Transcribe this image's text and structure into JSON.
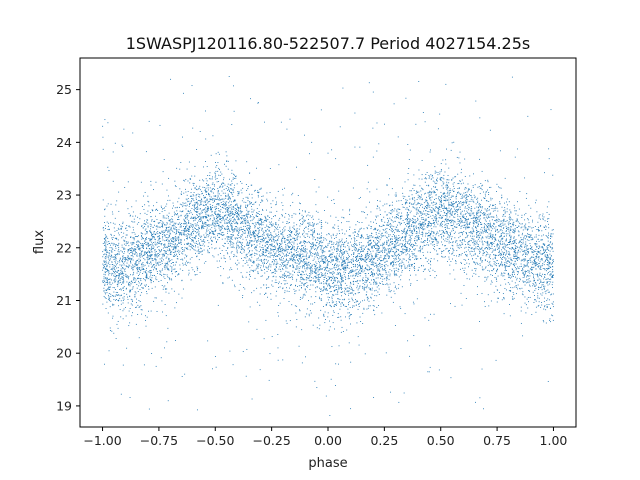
{
  "chart_data": {
    "type": "scatter",
    "title": "1SWASPJ120116.80-522507.7 Period 4027154.25s",
    "xlabel": "phase",
    "ylabel": "flux",
    "xlim": [
      -1.1,
      1.1
    ],
    "ylim": [
      18.6,
      25.6
    ],
    "xticks": [
      -1.0,
      -0.75,
      -0.5,
      -0.25,
      0.0,
      0.25,
      0.5,
      0.75,
      1.0
    ],
    "xtick_labels": [
      "−1.00",
      "−0.75",
      "−0.50",
      "−0.25",
      "0.00",
      "0.25",
      "0.50",
      "0.75",
      "1.00"
    ],
    "yticks": [
      19,
      20,
      21,
      22,
      23,
      24,
      25
    ],
    "ytick_labels": [
      "19",
      "20",
      "21",
      "22",
      "23",
      "24",
      "25"
    ],
    "grid": false,
    "marker_color": "#1f77b4",
    "series": [
      {
        "x_range": [
          -1.0,
          1.0
        ],
        "profile": [
          [
            -1.0,
            21.7
          ],
          [
            -0.9,
            21.6
          ],
          [
            -0.8,
            21.9
          ],
          [
            -0.7,
            22.1
          ],
          [
            -0.6,
            22.5
          ],
          [
            -0.5,
            22.7
          ],
          [
            -0.4,
            22.4
          ],
          [
            -0.3,
            22.2
          ],
          [
            -0.2,
            21.9
          ],
          [
            -0.1,
            21.8
          ],
          [
            0.0,
            21.6
          ],
          [
            0.1,
            21.6
          ],
          [
            0.2,
            21.8
          ],
          [
            0.3,
            22.1
          ],
          [
            0.4,
            22.4
          ],
          [
            0.5,
            22.7
          ],
          [
            0.6,
            22.5
          ],
          [
            0.7,
            22.3
          ],
          [
            0.8,
            22.0
          ],
          [
            0.9,
            21.8
          ],
          [
            1.0,
            21.7
          ]
        ],
        "scatter_sd": 0.45,
        "n_points": 9000
      }
    ]
  }
}
